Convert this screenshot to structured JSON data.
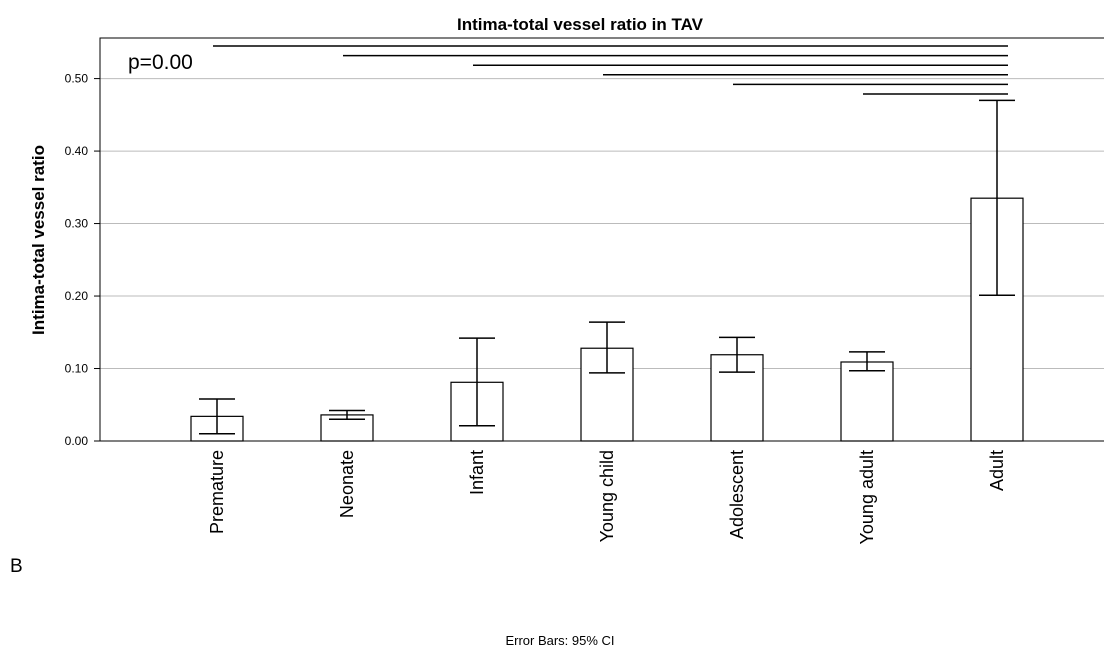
{
  "chart_data": {
    "type": "bar",
    "title": "Intima-total vessel ratio in TAV",
    "y_label": "Intima-total vessel ratio",
    "annotation": "p=0.00",
    "panel_label": "B",
    "footnote": "Error Bars: 95% CI",
    "categories": [
      "Premature",
      "Neonate",
      "Infant",
      "Young child",
      "Adolescent",
      "Young adult",
      "Adult"
    ],
    "values": [
      0.034,
      0.036,
      0.081,
      0.128,
      0.119,
      0.109,
      0.335
    ],
    "ci_lower": [
      0.01,
      0.03,
      0.021,
      0.094,
      0.095,
      0.097,
      0.201
    ],
    "ci_upper": [
      0.058,
      0.042,
      0.142,
      0.164,
      0.143,
      0.123,
      0.47
    ],
    "significance_pairs": [
      [
        "Premature",
        "Adult"
      ],
      [
        "Neonate",
        "Adult"
      ],
      [
        "Infant",
        "Adult"
      ],
      [
        "Young child",
        "Adult"
      ],
      [
        "Adolescent",
        "Adult"
      ],
      [
        "Young adult",
        "Adult"
      ]
    ],
    "color": "#ffffff",
    "ylim": [
      0,
      0.556
    ],
    "yticks": [
      {
        "value": 0,
        "label": "0.00"
      },
      {
        "value": 0.1,
        "label": "0.10"
      },
      {
        "value": 0.2,
        "label": "0.20"
      },
      {
        "value": 0.3,
        "label": "0.30"
      },
      {
        "value": 0.4,
        "label": "0.40"
      },
      {
        "value": 0.5,
        "label": "0.50"
      }
    ],
    "grid": true
  }
}
